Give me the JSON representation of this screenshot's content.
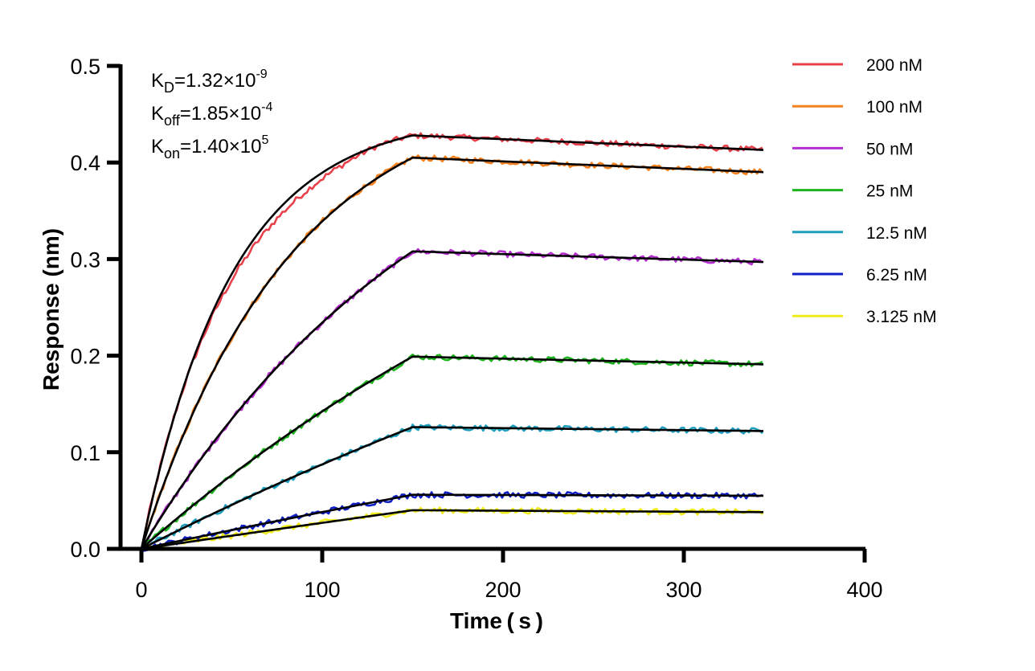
{
  "chart_data": {
    "type": "line",
    "xlabel": "Time ( s )",
    "ylabel": "Response (nm)",
    "xlim": [
      0,
      400
    ],
    "ylim": [
      0,
      0.5
    ],
    "xticks": [
      "0",
      "100",
      "200",
      "300",
      "400"
    ],
    "yticks": [
      "0.0",
      "0.1",
      "0.2",
      "0.3",
      "0.4",
      "0.5"
    ],
    "grid": false,
    "legend_position": "top-right outside plot",
    "association_end_time": 150,
    "x_max_data": 344,
    "fit_color": "#000000",
    "annotations": {
      "kd": {
        "symbol": "K",
        "sub": "D",
        "value": "=1.32×10",
        "exp": "-9"
      },
      "koff": {
        "symbol": "K",
        "sub": "off",
        "value": "=1.85×10",
        "exp": "-4"
      },
      "kon": {
        "symbol": "K",
        "sub": "on",
        "value": "=1.40×10",
        "exp": "5"
      }
    },
    "series": [
      {
        "name": "200 nM",
        "color": "#e8414b",
        "plateau_at_150": 0.428,
        "end_value": 0.413,
        "curvature": 3.0
      },
      {
        "name": "100 nM",
        "color": "#f5821f",
        "plateau_at_150": 0.405,
        "end_value": 0.39,
        "curvature": 1.8
      },
      {
        "name": "50 nM",
        "color": "#b52fd1",
        "plateau_at_150": 0.308,
        "end_value": 0.297,
        "curvature": 0.9
      },
      {
        "name": "25 nM",
        "color": "#1fb51f",
        "plateau_at_150": 0.199,
        "end_value": 0.191,
        "curvature": 0.45
      },
      {
        "name": "12.5 nM",
        "color": "#1f9fbf",
        "plateau_at_150": 0.126,
        "end_value": 0.122,
        "curvature": 0.25
      },
      {
        "name": "6.25 nM",
        "color": "#1020c8",
        "plateau_at_150": 0.056,
        "end_value": 0.055,
        "curvature": 0.12
      },
      {
        "name": "3.125 nM",
        "color": "#f0ec1c",
        "plateau_at_150": 0.04,
        "end_value": 0.038,
        "curvature": 0.06
      }
    ]
  }
}
